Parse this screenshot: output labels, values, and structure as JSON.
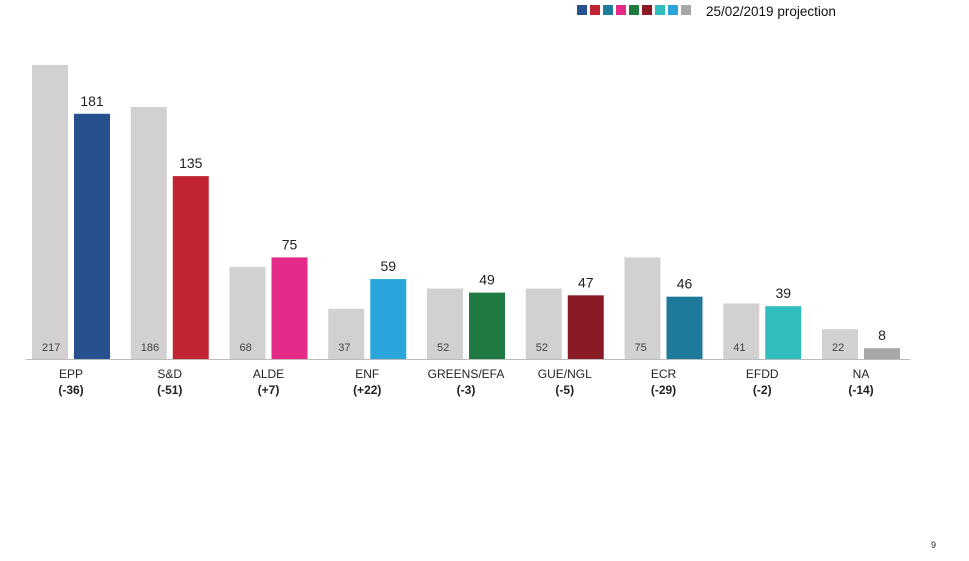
{
  "legend": {
    "text": "25/02/2019 projection",
    "swatches": [
      "#27508f",
      "#c02432",
      "#1e7d9b",
      "#e62a8a",
      "#1e7a40",
      "#8a1a24",
      "#30bdbd",
      "#2aa5dc",
      "#a8a8a8"
    ]
  },
  "page_number": "9",
  "colors": {
    "previous": "#d2d0d0",
    "axis": "#bbbbbb"
  },
  "chart_data": {
    "type": "bar",
    "title": "",
    "xlabel": "",
    "ylabel": "",
    "categories": [
      "EPP",
      "S&D",
      "ALDE",
      "ENF",
      "GREENS/EFA",
      "GUE/NGL",
      "ECR",
      "EFDD",
      "NA"
    ],
    "changes": [
      "(-36)",
      "(-51)",
      "(+7)",
      "(+22)",
      "(-3)",
      "(-5)",
      "(-29)",
      "(-2)",
      "(-14)"
    ],
    "series": [
      {
        "values": [
          217,
          186,
          68,
          37,
          52,
          52,
          75,
          41,
          22
        ],
        "color": "#d2d0d0"
      },
      {
        "values": [
          181,
          135,
          75,
          59,
          49,
          47,
          46,
          39,
          8
        ],
        "colors": [
          "#27508f",
          "#c02432",
          "#e62a8a",
          "#2aa5dc",
          "#1e7a40",
          "#8a1a24",
          "#1e7a9b",
          "#30bdbd",
          "#a8a8a8"
        ]
      }
    ],
    "ylim": [
      0,
      217
    ],
    "grid": false,
    "legend": "top-right"
  }
}
